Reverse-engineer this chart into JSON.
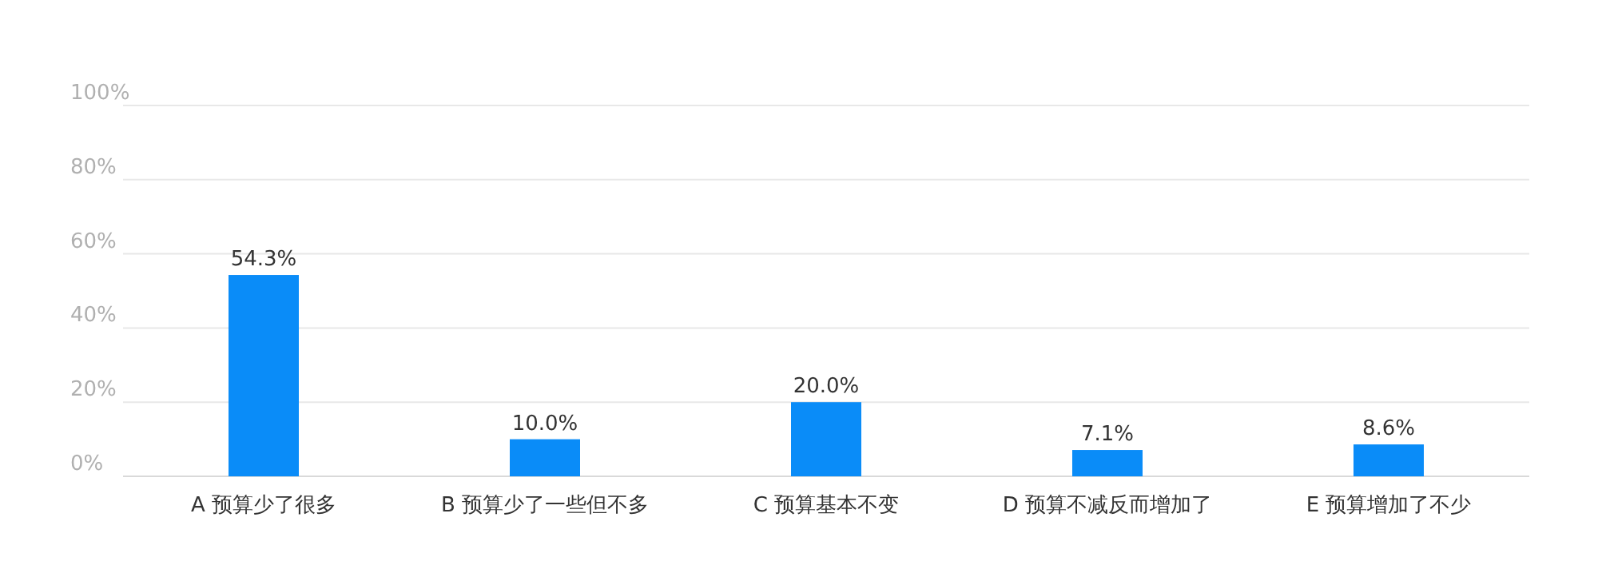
{
  "chart_data": {
    "type": "bar",
    "categories": [
      "A 预算少了很多",
      "B 预算少了一些但不多",
      "C 预算基本不变",
      "D 预算不减反而增加了",
      "E 预算增加了不少"
    ],
    "values": [
      54.3,
      10.0,
      20.0,
      7.1,
      8.6
    ],
    "value_labels": [
      "54.3%",
      "10.0%",
      "20.0%",
      "7.1%",
      "8.6%"
    ],
    "color": "#0a8cf8",
    "ylim": [
      0,
      100
    ],
    "yticks": [
      {
        "value": 0,
        "label": "0%"
      },
      {
        "value": 20,
        "label": "20%"
      },
      {
        "value": 40,
        "label": "40%"
      },
      {
        "value": 60,
        "label": "60%"
      },
      {
        "value": 80,
        "label": "80%"
      },
      {
        "value": 100,
        "label": "100%"
      }
    ],
    "grid": "y"
  }
}
